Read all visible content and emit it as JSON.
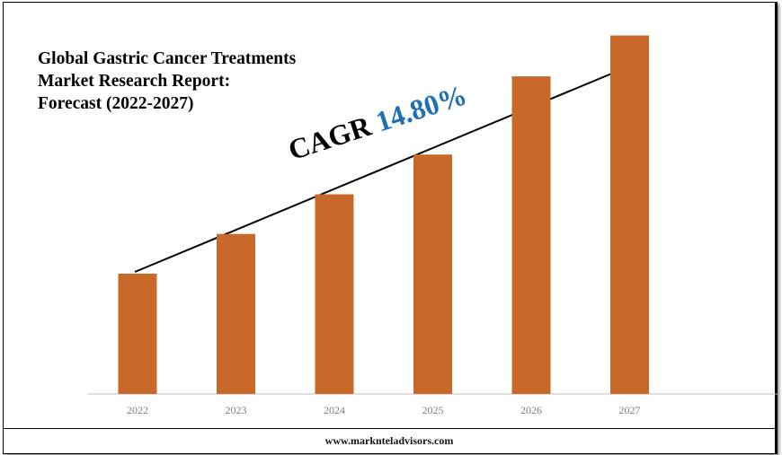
{
  "title": "Global Gastric Cancer Treatments Market Research Report: Forecast (2022-2027)",
  "cagr": {
    "label": "CAGR",
    "value": "14.80%"
  },
  "footer": "www.marknteladvisors.com",
  "colors": {
    "bar": "#c8692a",
    "cagr_value": "#1f6fb3",
    "axis": "#bfbfbf"
  },
  "chart_data": {
    "type": "bar",
    "title": "Global Gastric Cancer Treatments Market Research Report: Forecast (2022-2027)",
    "categories": [
      "2022",
      "2023",
      "2024",
      "2025",
      "2026",
      "2027"
    ],
    "values": [
      1.0,
      1.33,
      1.66,
      1.99,
      2.64,
      2.98
    ],
    "ylim": [
      0,
      3.2
    ],
    "grid": false,
    "legend": "none"
  }
}
